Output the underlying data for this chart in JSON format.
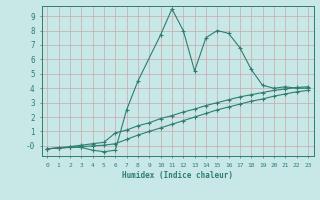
{
  "xlabel": "Humidex (Indice chaleur)",
  "bg_color": "#c8e8e8",
  "grid_color": "#d8ecec",
  "line_color": "#2e7d6e",
  "xlim": [
    -0.5,
    23.5
  ],
  "ylim": [
    -0.7,
    9.7
  ],
  "xticks": [
    0,
    1,
    2,
    3,
    4,
    5,
    6,
    7,
    8,
    9,
    10,
    11,
    12,
    13,
    14,
    15,
    16,
    17,
    18,
    19,
    20,
    21,
    22,
    23
  ],
  "yticks": [
    0,
    1,
    2,
    3,
    4,
    5,
    6,
    7,
    8,
    9
  ],
  "ytick_labels": [
    "-0",
    "1",
    "2",
    "3",
    "4",
    "5",
    "6",
    "7",
    "8",
    "9"
  ],
  "line1_x": [
    0,
    1,
    2,
    3,
    4,
    5,
    6,
    7,
    8,
    10,
    11,
    12,
    13,
    14,
    15,
    16,
    17,
    18,
    19,
    20,
    21,
    22,
    23
  ],
  "line1_y": [
    -0.2,
    -0.15,
    -0.1,
    -0.1,
    -0.3,
    -0.4,
    -0.3,
    2.5,
    4.5,
    7.7,
    9.5,
    8.0,
    5.2,
    7.5,
    8.0,
    7.8,
    6.8,
    5.3,
    4.2,
    4.0,
    4.1,
    4.0,
    4.0
  ],
  "line2_x": [
    0,
    1,
    2,
    3,
    4,
    5,
    6,
    7,
    8,
    9,
    10,
    11,
    12,
    13,
    14,
    15,
    16,
    17,
    18,
    19,
    20,
    21,
    22,
    23
  ],
  "line2_y": [
    -0.2,
    -0.12,
    -0.05,
    0.05,
    0.15,
    0.25,
    0.9,
    1.1,
    1.4,
    1.6,
    1.9,
    2.1,
    2.35,
    2.55,
    2.8,
    3.0,
    3.2,
    3.4,
    3.55,
    3.7,
    3.85,
    3.95,
    4.05,
    4.1
  ],
  "line3_x": [
    0,
    1,
    2,
    3,
    4,
    5,
    6,
    7,
    8,
    9,
    10,
    11,
    12,
    13,
    14,
    15,
    16,
    17,
    18,
    19,
    20,
    21,
    22,
    23
  ],
  "line3_y": [
    -0.2,
    -0.15,
    -0.1,
    -0.05,
    0.0,
    0.05,
    0.15,
    0.45,
    0.75,
    1.0,
    1.25,
    1.5,
    1.75,
    2.0,
    2.25,
    2.5,
    2.7,
    2.9,
    3.1,
    3.25,
    3.45,
    3.6,
    3.75,
    3.85
  ],
  "figsize": [
    3.2,
    2.0
  ],
  "dpi": 100
}
